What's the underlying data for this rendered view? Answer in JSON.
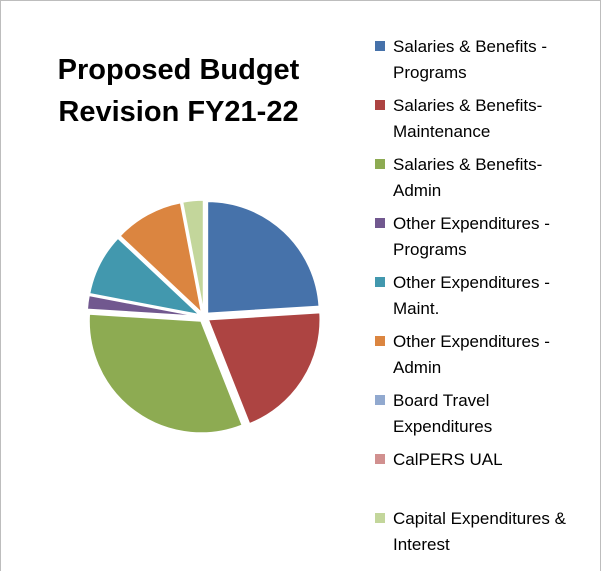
{
  "chart_data": {
    "type": "pie",
    "title": "Proposed Budget Revision FY21-22",
    "categories": [
      "Salaries & Benefits - Programs",
      "Salaries & Benefits-Maintenance",
      "Salaries & Benefits-Admin",
      "Other Expenditures - Programs",
      "Other Expenditures - Maint.",
      "Other Expenditures - Admin",
      "Board Travel Expenditures",
      "CalPERS UAL",
      "Capital Expenditures & Interest"
    ],
    "values": [
      24,
      20,
      32,
      2,
      9,
      10,
      0,
      0,
      3
    ],
    "colors": [
      "#4672aa",
      "#ad4442",
      "#8dab52",
      "#71588f",
      "#4298ae",
      "#db8540",
      "#91a9cf",
      "#d1908f",
      "#c3d69b"
    ],
    "legend": "right"
  }
}
